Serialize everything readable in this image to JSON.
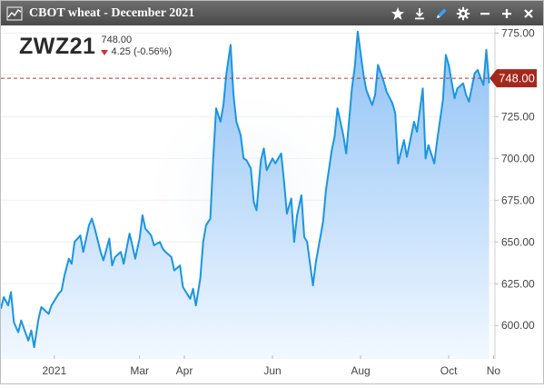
{
  "window": {
    "title": "CBOT wheat - December 2021",
    "icons": [
      "chart-app-icon",
      "star-icon",
      "download-icon",
      "pencil-icon",
      "gear-icon",
      "minimize-icon",
      "add-icon",
      "close-icon"
    ]
  },
  "quote": {
    "symbol": "ZWZ21",
    "last": "748.00",
    "change": "4.25",
    "change_pct": "(-0.56%)",
    "direction": "down",
    "price_tag": "748.00"
  },
  "colors": {
    "line": "#1a96e0",
    "fill_top": "#8ec1f5",
    "fill_bottom": "#f2f8ff",
    "price_line": "#c0392b",
    "price_tag_bg": "#a5281b",
    "change_down": "#d32f2f"
  },
  "chart_data": {
    "type": "area",
    "title": "",
    "xlabel": "",
    "ylabel": "",
    "ylim": [
      580,
      778
    ],
    "y_ticks": [
      600,
      625,
      650,
      675,
      700,
      725,
      750,
      775
    ],
    "y_tick_labels": [
      "600.00",
      "625.00",
      "650.00",
      "675.00",
      "700.00",
      "725.00",
      "750.00",
      "775.00"
    ],
    "x_range": [
      "2020-11-25",
      "2021-11-02"
    ],
    "x_ticks": [
      "2021-01-01",
      "2021-03-01",
      "2021-04-01",
      "2021-06-01",
      "2021-08-01",
      "2021-10-01",
      "2021-11-01"
    ],
    "x_tick_labels": [
      "2021",
      "Mar",
      "Apr",
      "Jun",
      "Aug",
      "Oct",
      "No"
    ],
    "reference_line": 748.0,
    "series": [
      {
        "x": [
          "2020-11-25",
          "2020-11-27",
          "2020-11-30",
          "2020-12-02",
          "2020-12-04",
          "2020-12-07",
          "2020-12-09",
          "2020-12-11",
          "2020-12-14",
          "2020-12-16",
          "2020-12-18",
          "2020-12-21",
          "2020-12-23",
          "2020-12-28",
          "2020-12-30",
          "2021-01-04",
          "2021-01-06",
          "2021-01-08",
          "2021-01-11",
          "2021-01-13",
          "2021-01-15",
          "2021-01-19",
          "2021-01-21",
          "2021-01-25",
          "2021-01-27",
          "2021-01-29",
          "2021-02-02",
          "2021-02-04",
          "2021-02-08",
          "2021-02-10",
          "2021-02-12",
          "2021-02-16",
          "2021-02-18",
          "2021-02-22",
          "2021-02-24",
          "2021-02-26",
          "2021-03-01",
          "2021-03-03",
          "2021-03-05",
          "2021-03-09",
          "2021-03-11",
          "2021-03-15",
          "2021-03-17",
          "2021-03-19",
          "2021-03-23",
          "2021-03-25",
          "2021-03-29",
          "2021-03-31",
          "2021-04-05",
          "2021-04-07",
          "2021-04-09",
          "2021-04-12",
          "2021-04-14",
          "2021-04-16",
          "2021-04-19",
          "2021-04-21",
          "2021-04-23",
          "2021-04-26",
          "2021-04-28",
          "2021-04-30",
          "2021-05-03",
          "2021-05-05",
          "2021-05-07",
          "2021-05-10",
          "2021-05-12",
          "2021-05-14",
          "2021-05-17",
          "2021-05-19",
          "2021-05-21",
          "2021-05-24",
          "2021-05-26",
          "2021-05-28",
          "2021-06-01",
          "2021-06-03",
          "2021-06-07",
          "2021-06-09",
          "2021-06-11",
          "2021-06-14",
          "2021-06-16",
          "2021-06-18",
          "2021-06-21",
          "2021-06-23",
          "2021-06-25",
          "2021-06-29",
          "2021-07-01",
          "2021-07-06",
          "2021-07-08",
          "2021-07-12",
          "2021-07-14",
          "2021-07-16",
          "2021-07-20",
          "2021-07-22",
          "2021-07-26",
          "2021-07-28",
          "2021-07-30",
          "2021-08-03",
          "2021-08-05",
          "2021-08-09",
          "2021-08-11",
          "2021-08-13",
          "2021-08-17",
          "2021-08-19",
          "2021-08-23",
          "2021-08-25",
          "2021-08-27",
          "2021-08-31",
          "2021-09-02",
          "2021-09-07",
          "2021-09-09",
          "2021-09-13",
          "2021-09-15",
          "2021-09-17",
          "2021-09-21",
          "2021-09-23",
          "2021-09-27",
          "2021-09-29",
          "2021-10-01",
          "2021-10-05",
          "2021-10-07",
          "2021-10-11",
          "2021-10-13",
          "2021-10-15",
          "2021-10-19",
          "2021-10-21",
          "2021-10-25",
          "2021-10-27",
          "2021-10-29"
        ],
        "y": [
          610,
          617,
          612,
          620,
          602,
          596,
          603,
          598,
          591,
          597,
          587,
          604,
          611,
          607,
          612,
          619,
          621,
          630,
          640,
          637,
          650,
          654,
          644,
          660,
          664,
          658,
          644,
          639,
          652,
          636,
          641,
          644,
          637,
          655,
          648,
          640,
          652,
          666,
          658,
          654,
          648,
          650,
          646,
          644,
          641,
          633,
          636,
          623,
          616,
          622,
          612,
          628,
          650,
          660,
          664,
          700,
          730,
          722,
          732,
          750,
          768,
          738,
          722,
          714,
          700,
          699,
          694,
          674,
          669,
          699,
          706,
          693,
          700,
          697,
          703,
          686,
          667,
          676,
          650,
          666,
          678,
          653,
          650,
          624,
          638,
          662,
          681,
          705,
          713,
          730,
          714,
          703,
          742,
          755,
          776,
          750,
          741,
          732,
          738,
          756,
          746,
          740,
          733,
          727,
          697,
          711,
          701,
          722,
          716,
          742,
          700,
          708,
          697,
          711,
          735,
          762,
          756,
          736,
          742,
          745,
          738,
          734,
          751,
          753,
          744,
          765,
          745
        ]
      }
    ]
  }
}
